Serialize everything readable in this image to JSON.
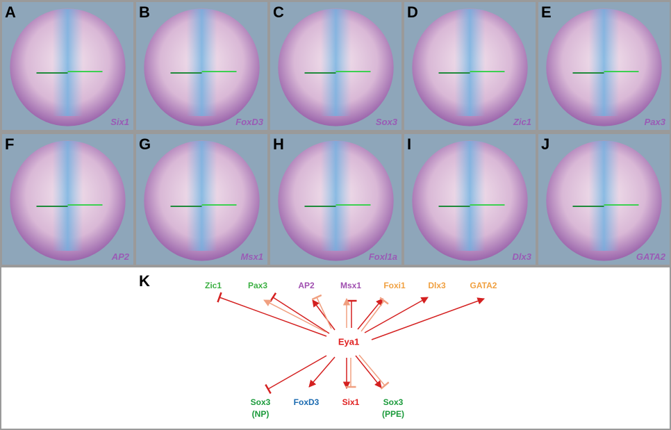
{
  "panels": [
    {
      "letter": "A",
      "gene": "Six1"
    },
    {
      "letter": "B",
      "gene": "FoxD3"
    },
    {
      "letter": "C",
      "gene": "Sox3"
    },
    {
      "letter": "D",
      "gene": "Zic1"
    },
    {
      "letter": "E",
      "gene": "Pax3"
    },
    {
      "letter": "F",
      "gene": "AP2"
    },
    {
      "letter": "G",
      "gene": "Msx1"
    },
    {
      "letter": "H",
      "gene": "Foxl1a"
    },
    {
      "letter": "I",
      "gene": "Dlx3"
    },
    {
      "letter": "J",
      "gene": "GATA2"
    }
  ],
  "diagram": {
    "letter": "K",
    "center": "Eya1",
    "upstream": [
      "Zic1",
      "Pax3",
      "AP2",
      "Msx1",
      "Foxi1",
      "Dlx3",
      "GATA2"
    ],
    "downstream": [
      {
        "name": "Sox3",
        "note": "(NP)"
      },
      {
        "name": "FoxD3"
      },
      {
        "name": "Six1"
      },
      {
        "name": "Sox3",
        "note": "(PPE)"
      }
    ]
  }
}
